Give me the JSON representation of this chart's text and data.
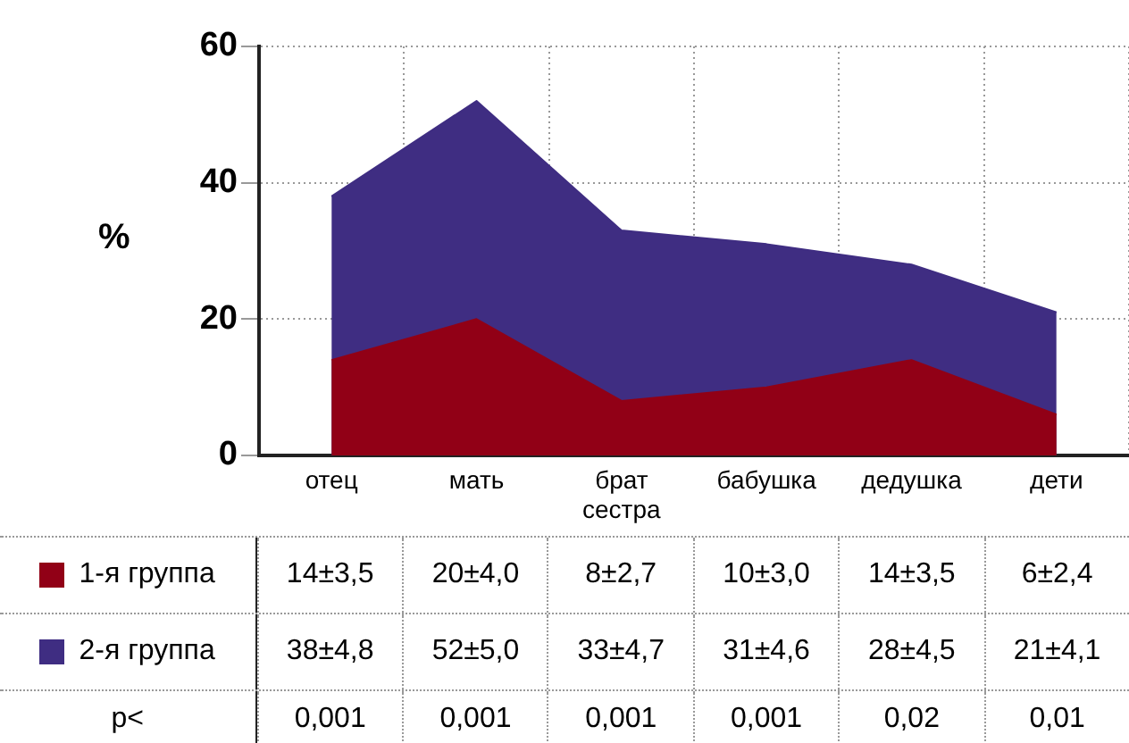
{
  "chart_data": {
    "type": "area",
    "ylabel": "%",
    "categories": [
      "отец",
      "мать",
      "брат сестра",
      "бабушка",
      "дедушка",
      "дети"
    ],
    "series": [
      {
        "name": "2-я группа",
        "color": "#3f2d82",
        "values": [
          38,
          52,
          33,
          31,
          28,
          21
        ],
        "value_labels": [
          "38±4,8",
          "52±5,0",
          "33±4,7",
          "31±4,6",
          "28±4,5",
          "21±4,1"
        ]
      },
      {
        "name": "1-я группа",
        "color": "#910016",
        "values": [
          14,
          20,
          8,
          10,
          14,
          6
        ],
        "value_labels": [
          "14±3,5",
          "20±4,0",
          "8±2,7",
          "10±3,0",
          "14±3,5",
          "6±2,4"
        ]
      }
    ],
    "ylim": [
      0,
      60
    ],
    "yticks": [
      0,
      20,
      40,
      60
    ],
    "grid": true,
    "legend": "bottom left",
    "annotations": [
      "p<",
      "0,001",
      "0,001",
      "0,001",
      "0,001",
      "0,02",
      "0,01"
    ]
  }
}
